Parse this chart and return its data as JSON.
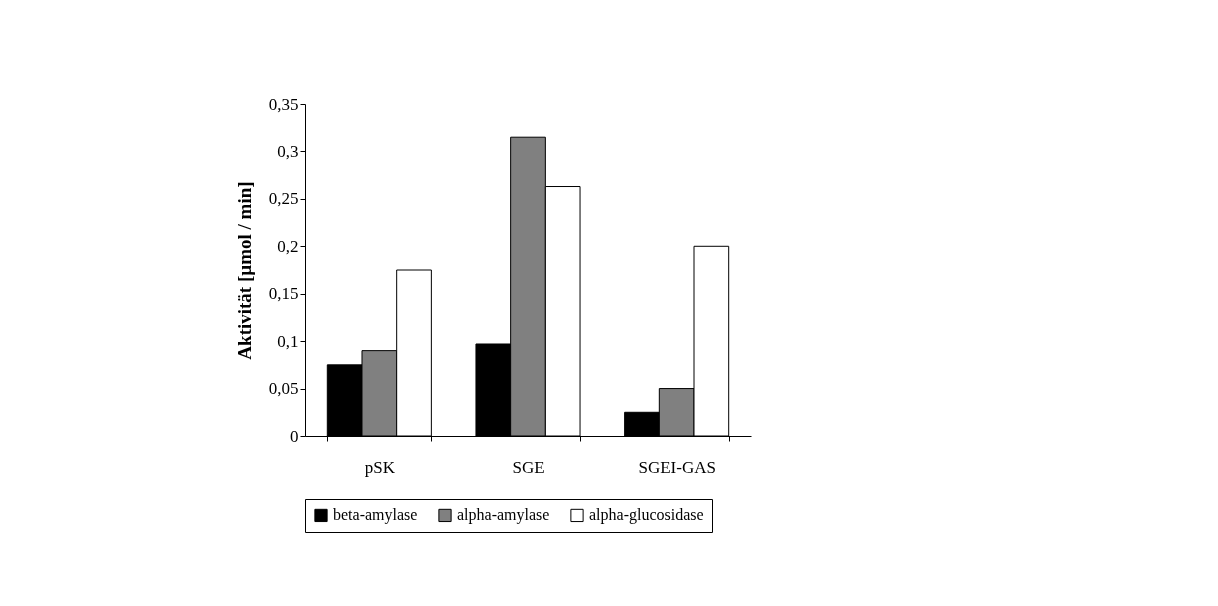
{
  "chart_data": {
    "type": "bar",
    "ylabel": "Aktivität [µmol / min]",
    "categories": [
      "pSK",
      "SGE",
      "SGEI-GAS"
    ],
    "series": [
      {
        "name": "beta-amylase",
        "color": "#000000",
        "values": [
          0.075,
          0.097,
          0.025
        ]
      },
      {
        "name": "alpha-amylase",
        "color": "#808080",
        "values": [
          0.09,
          0.315,
          0.05
        ]
      },
      {
        "name": "alpha-glucosidase",
        "color": "#ffffff",
        "values": [
          0.175,
          0.263,
          0.2
        ]
      }
    ],
    "ylim": [
      0,
      0.35
    ],
    "yticks": [
      0,
      {
        "value": 0.05,
        "label": "0,05"
      },
      {
        "value": 0.1,
        "label": "0,1"
      },
      {
        "value": 0.15,
        "label": "0,15"
      },
      {
        "value": 0.2,
        "label": "0,2"
      },
      {
        "value": 0.25,
        "label": "0,25"
      },
      {
        "value": 0.3,
        "label": "0,3"
      },
      {
        "value": 0.35,
        "label": "0,35"
      }
    ],
    "grid": false,
    "legend": "bottom"
  }
}
